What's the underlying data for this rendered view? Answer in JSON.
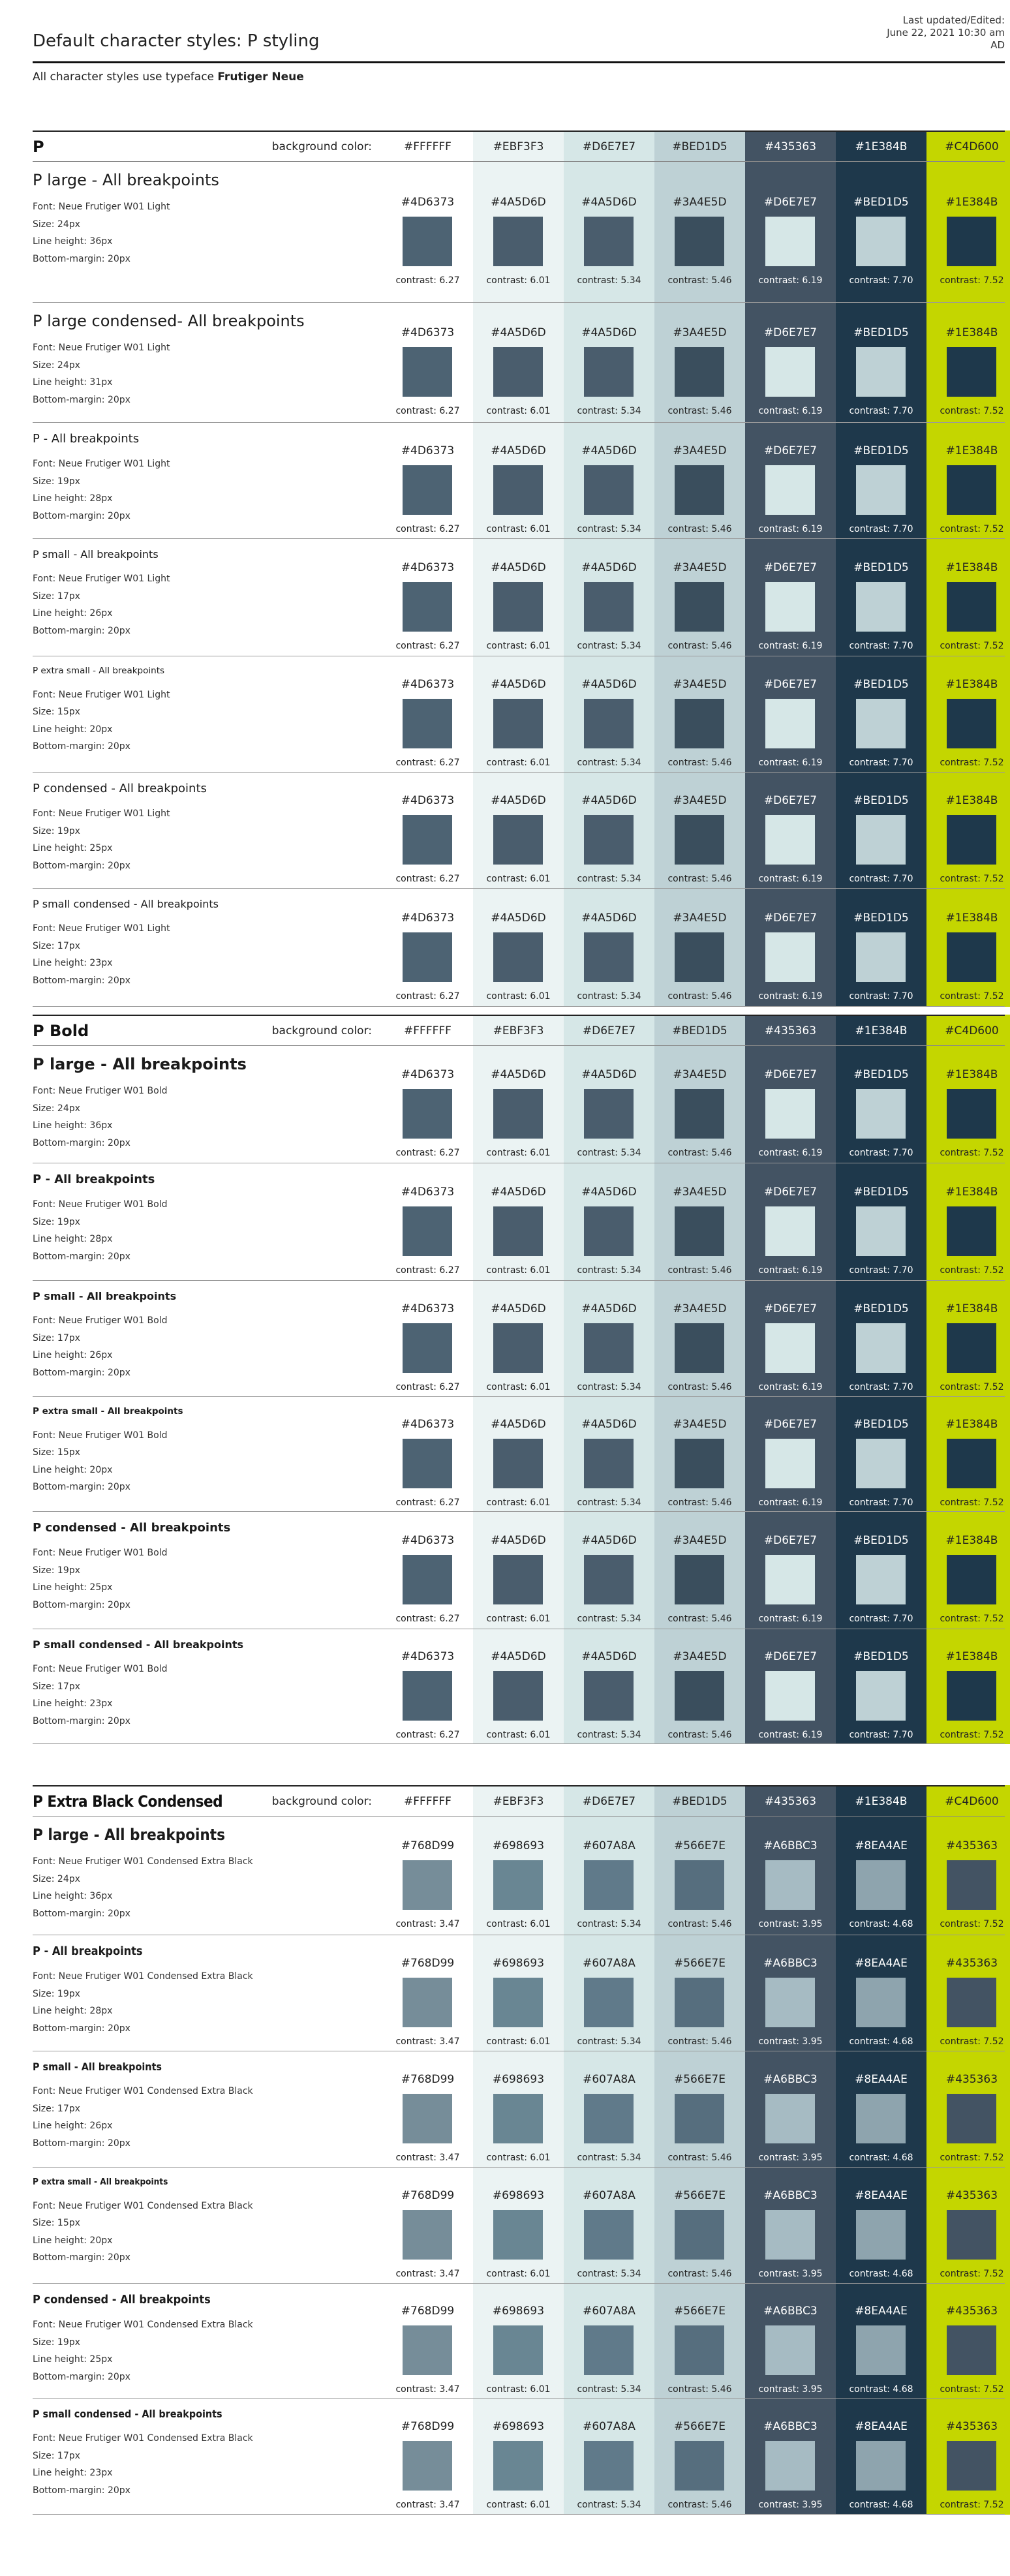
{
  "header": {
    "title": "Default character styles: P styling",
    "updated_line1": "Last updated/Edited:",
    "updated_line2": "June 22, 2021 10:30 am",
    "updated_line3": "AD",
    "intro_prefix": "All character styles use typeface",
    "intro_typeface": "Frutiger Neue"
  },
  "sections": [
    {
      "title": "P",
      "bg_label": "background color:",
      "backgrounds": [
        {
          "hex": "#FFFFFF",
          "text_color": "#222222"
        },
        {
          "hex": "#EBF3F3",
          "text_color": "#222222"
        },
        {
          "hex": "#D6E7E7",
          "text_color": "#222222"
        },
        {
          "hex": "#BED1D5",
          "text_color": "#222222"
        },
        {
          "hex": "#435363",
          "text_color": "#ffffff"
        },
        {
          "hex": "#1E384B",
          "text_color": "#ffffff"
        },
        {
          "hex": "#C4D600",
          "text_color": "#222222"
        }
      ],
      "swatches": [
        {
          "hex": "#4D6373",
          "contrast": "contrast: 6.27"
        },
        {
          "hex": "#4A5D6D",
          "contrast": "contrast: 6.01"
        },
        {
          "hex": "#4A5D6D",
          "contrast": "contrast: 5.34"
        },
        {
          "hex": "#3A4E5D",
          "contrast": "contrast: 5.46"
        },
        {
          "hex": "#D6E7E7",
          "contrast": "contrast: 6.19"
        },
        {
          "hex": "#BED1D5",
          "contrast": "contrast: 7.70"
        },
        {
          "hex": "#1E384B",
          "contrast": "contrast: 7.52"
        }
      ],
      "rows": [
        {
          "title": "P large - All breakpoints",
          "font": "Font: Neue Frutiger W01 Light",
          "size": "Size: 24px",
          "line_height": "Line height: 36px",
          "margin": "Bottom-margin: 20px"
        },
        {
          "title": "P large condensed- All breakpoints",
          "font": "Font: Neue Frutiger W01 Light",
          "size": "Size: 24px",
          "line_height": "Line height: 31px",
          "margin": "Bottom-margin: 20px"
        },
        {
          "title": "P - All breakpoints",
          "font": "Font: Neue Frutiger W01 Light",
          "size": "Size: 19px",
          "line_height": "Line height: 28px",
          "margin": "Bottom-margin: 20px"
        },
        {
          "title": "P small - All breakpoints",
          "font": "Font: Neue Frutiger W01 Light",
          "size": "Size: 17px",
          "line_height": "Line height: 26px",
          "margin": "Bottom-margin: 20px"
        },
        {
          "title": "P extra small - All breakpoints",
          "font": "Font: Neue Frutiger W01 Light",
          "size": "Size: 15px",
          "line_height": "Line height: 20px",
          "margin": "Bottom-margin: 20px"
        },
        {
          "title": "P condensed - All breakpoints",
          "font": "Font: Neue Frutiger W01 Light",
          "size": "Size: 19px",
          "line_height": "Line height: 25px",
          "margin": "Bottom-margin: 20px"
        },
        {
          "title": "P small condensed - All breakpoints",
          "font": "Font: Neue Frutiger W01 Light",
          "size": "Size: 17px",
          "line_height": "Line height: 23px",
          "margin": "Bottom-margin: 20px"
        }
      ]
    },
    {
      "title": "P Bold",
      "bg_label": "background color:",
      "backgrounds": [
        {
          "hex": "#FFFFFF",
          "text_color": "#222222"
        },
        {
          "hex": "#EBF3F3",
          "text_color": "#222222"
        },
        {
          "hex": "#D6E7E7",
          "text_color": "#222222"
        },
        {
          "hex": "#BED1D5",
          "text_color": "#222222"
        },
        {
          "hex": "#435363",
          "text_color": "#ffffff"
        },
        {
          "hex": "#1E384B",
          "text_color": "#ffffff"
        },
        {
          "hex": "#C4D600",
          "text_color": "#222222"
        }
      ],
      "swatches": [
        {
          "hex": "#4D6373",
          "contrast": "contrast: 6.27"
        },
        {
          "hex": "#4A5D6D",
          "contrast": "contrast: 6.01"
        },
        {
          "hex": "#4A5D6D",
          "contrast": "contrast: 5.34"
        },
        {
          "hex": "#3A4E5D",
          "contrast": "contrast: 5.46"
        },
        {
          "hex": "#D6E7E7",
          "contrast": "contrast: 6.19"
        },
        {
          "hex": "#BED1D5",
          "contrast": "contrast: 7.70"
        },
        {
          "hex": "#1E384B",
          "contrast": "contrast: 7.52"
        }
      ],
      "rows": [
        {
          "title": "P large - All breakpoints",
          "font": "Font: Neue Frutiger W01 Bold",
          "size": "Size: 24px",
          "line_height": "Line height: 36px",
          "margin": "Bottom-margin: 20px"
        },
        {
          "title": "P - All breakpoints",
          "font": "Font: Neue Frutiger W01 Bold",
          "size": "Size: 19px",
          "line_height": "Line height: 28px",
          "margin": "Bottom-margin: 20px"
        },
        {
          "title": "P small - All breakpoints",
          "font": "Font: Neue Frutiger W01 Bold",
          "size": "Size: 17px",
          "line_height": "Line height: 26px",
          "margin": "Bottom-margin: 20px"
        },
        {
          "title": "P extra small - All breakpoints",
          "font": "Font: Neue Frutiger W01 Bold",
          "size": "Size: 15px",
          "line_height": "Line height: 20px",
          "margin": "Bottom-margin: 20px"
        },
        {
          "title": "P condensed - All breakpoints",
          "font": "Font: Neue Frutiger W01 Bold",
          "size": "Size: 19px",
          "line_height": "Line height: 25px",
          "margin": "Bottom-margin: 20px"
        },
        {
          "title": "P small condensed - All breakpoints",
          "font": "Font: Neue Frutiger W01 Bold",
          "size": "Size: 17px",
          "line_height": "Line height: 23px",
          "margin": "Bottom-margin: 20px"
        }
      ]
    },
    {
      "title": "P Extra Black Condensed",
      "bg_label": "background color:",
      "backgrounds": [
        {
          "hex": "#FFFFFF",
          "text_color": "#222222"
        },
        {
          "hex": "#EBF3F3",
          "text_color": "#222222"
        },
        {
          "hex": "#D6E7E7",
          "text_color": "#222222"
        },
        {
          "hex": "#BED1D5",
          "text_color": "#222222"
        },
        {
          "hex": "#435363",
          "text_color": "#ffffff"
        },
        {
          "hex": "#1E384B",
          "text_color": "#ffffff"
        },
        {
          "hex": "#C4D600",
          "text_color": "#222222"
        }
      ],
      "swatches": [
        {
          "hex": "#768D99",
          "contrast": "contrast: 3.47"
        },
        {
          "hex": "#698693",
          "contrast": "contrast: 6.01"
        },
        {
          "hex": "#607A8A",
          "contrast": "contrast: 5.34"
        },
        {
          "hex": "#566E7E",
          "contrast": "contrast: 5.46"
        },
        {
          "hex": "#A6BBC3",
          "contrast": "contrast: 3.95"
        },
        {
          "hex": "#8EA4AE",
          "contrast": "contrast: 4.68"
        },
        {
          "hex": "#435363",
          "contrast": "contrast: 7.52"
        }
      ],
      "rows": [
        {
          "title": "P large - All breakpoints",
          "font": "Font: Neue Frutiger W01 Condensed Extra Black",
          "size": "Size: 24px",
          "line_height": "Line height: 36px",
          "margin": "Bottom-margin: 20px"
        },
        {
          "title": "P - All breakpoints",
          "font": "Font: Neue Frutiger W01 Condensed Extra Black",
          "size": "Size: 19px",
          "line_height": "Line height: 28px",
          "margin": "Bottom-margin: 20px"
        },
        {
          "title": "P small - All breakpoints",
          "font": "Font: Neue Frutiger W01 Condensed Extra Black",
          "size": "Size: 17px",
          "line_height": "Line height: 26px",
          "margin": "Bottom-margin: 20px"
        },
        {
          "title": "P extra small - All breakpoints",
          "font": "Font: Neue Frutiger W01 Condensed Extra Black",
          "size": "Size: 15px",
          "line_height": "Line height: 20px",
          "margin": "Bottom-margin: 20px"
        },
        {
          "title": "P condensed - All breakpoints",
          "font": "Font: Neue Frutiger W01 Condensed Extra Black",
          "size": "Size: 19px",
          "line_height": "Line height: 25px",
          "margin": "Bottom-margin: 20px"
        },
        {
          "title": "P small condensed - All breakpoints",
          "font": "Font: Neue Frutiger W01 Condensed Extra Black",
          "size": "Size: 17px",
          "line_height": "Line height: 23px",
          "margin": "Bottom-margin: 20px"
        }
      ]
    }
  ]
}
